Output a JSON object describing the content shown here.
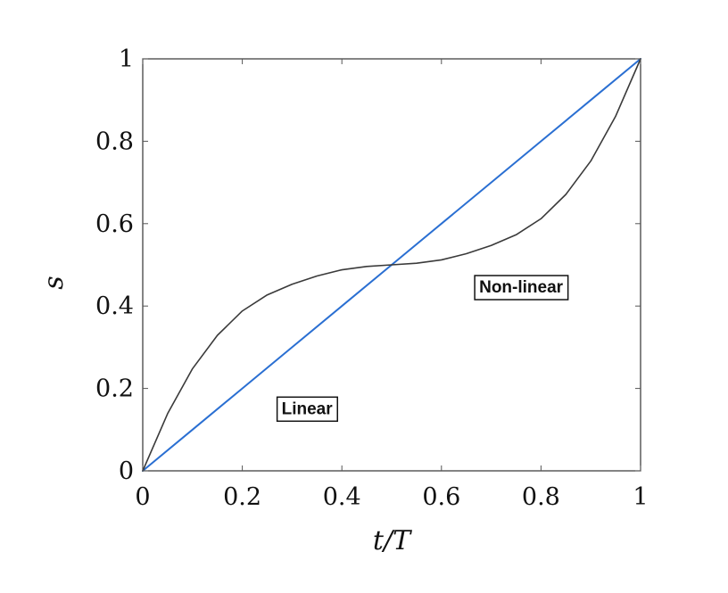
{
  "chart_data": {
    "type": "line",
    "title": "",
    "xlabel": "t/T",
    "ylabel": "s",
    "xlim": [
      0,
      1
    ],
    "ylim": [
      0,
      1
    ],
    "x_ticks": [
      "0",
      "0.2",
      "0.4",
      "0.6",
      "0.8",
      "1"
    ],
    "y_ticks": [
      "0",
      "0.2",
      "0.4",
      "0.6",
      "0.8",
      "1"
    ],
    "grid": false,
    "legend": "none",
    "series": [
      {
        "color": "#2a6fd2",
        "x": [
          0,
          0.1,
          0.2,
          0.3,
          0.4,
          0.5,
          0.6,
          0.7,
          0.8,
          0.9,
          1
        ],
        "y": [
          0,
          0.1,
          0.2,
          0.3,
          0.4,
          0.5,
          0.6,
          0.7,
          0.8,
          0.9,
          1
        ]
      },
      {
        "color": "#3a3a3a",
        "x": [
          0,
          0.05,
          0.1,
          0.15,
          0.2,
          0.25,
          0.3,
          0.35,
          0.4,
          0.45,
          0.5,
          0.55,
          0.6,
          0.65,
          0.7,
          0.75,
          0.8,
          0.85,
          0.9,
          0.95,
          1
        ],
        "y": [
          0,
          0.139,
          0.248,
          0.329,
          0.388,
          0.427,
          0.453,
          0.473,
          0.488,
          0.496,
          0.5,
          0.504,
          0.512,
          0.527,
          0.547,
          0.573,
          0.612,
          0.671,
          0.752,
          0.861,
          1
        ]
      }
    ],
    "annotations": [
      {
        "text": "Linear",
        "x": 0.33,
        "y": 0.153
      },
      {
        "text": "Non-linear",
        "x": 0.76,
        "y": 0.448
      }
    ]
  }
}
